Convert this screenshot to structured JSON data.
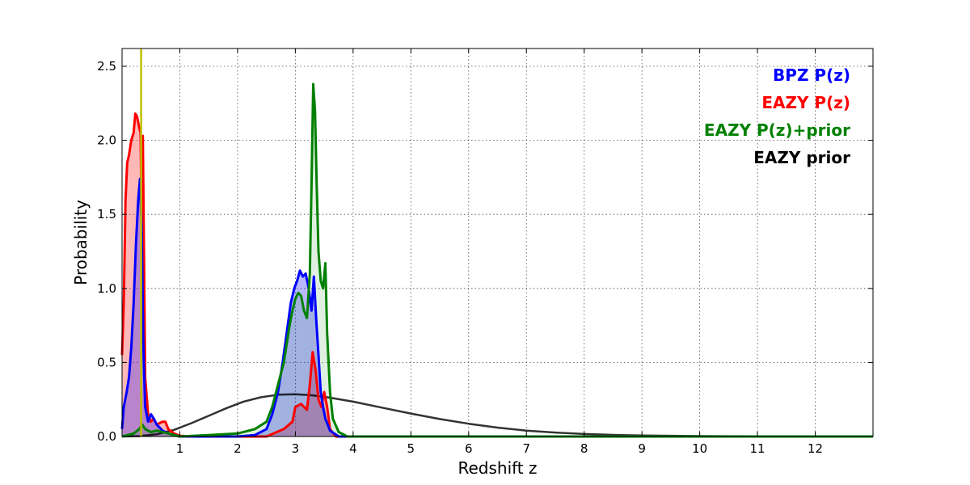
{
  "chart_data": {
    "type": "area",
    "xlabel": "Redshift z",
    "ylabel": "Probability",
    "xlim": [
      0,
      13
    ],
    "ylim": [
      0,
      2.62
    ],
    "x_ticks": [
      1,
      2,
      3,
      4,
      5,
      6,
      7,
      8,
      9,
      10,
      11,
      12
    ],
    "y_ticks": [
      0.0,
      0.5,
      1.0,
      1.5,
      2.0,
      2.5
    ],
    "y_tick_labels": [
      "0.0",
      "0.5",
      "1.0",
      "1.5",
      "2.0",
      "2.5"
    ],
    "grid": true,
    "legend_position": "top-right",
    "vertical_line": {
      "x": 0.33,
      "color": "#bfbf00"
    },
    "series": [
      {
        "name": "EAZY prior",
        "color": "#000000",
        "filled": false,
        "points": [
          [
            0.0,
            0.0
          ],
          [
            0.3,
            0.003
          ],
          [
            0.6,
            0.015
          ],
          [
            0.9,
            0.045
          ],
          [
            1.2,
            0.09
          ],
          [
            1.5,
            0.14
          ],
          [
            1.8,
            0.19
          ],
          [
            2.1,
            0.235
          ],
          [
            2.4,
            0.265
          ],
          [
            2.7,
            0.282
          ],
          [
            3.0,
            0.285
          ],
          [
            3.3,
            0.278
          ],
          [
            3.6,
            0.262
          ],
          [
            4.0,
            0.235
          ],
          [
            4.5,
            0.195
          ],
          [
            5.0,
            0.155
          ],
          [
            5.5,
            0.118
          ],
          [
            6.0,
            0.086
          ],
          [
            6.5,
            0.06
          ],
          [
            7.0,
            0.04
          ],
          [
            7.5,
            0.027
          ],
          [
            8.0,
            0.017
          ],
          [
            8.5,
            0.011
          ],
          [
            9.0,
            0.007
          ],
          [
            10.0,
            0.003
          ],
          [
            11.0,
            0.001
          ],
          [
            12.0,
            0.0
          ],
          [
            13.0,
            0.0
          ]
        ]
      },
      {
        "name": "EAZY P(z)",
        "color": "#ff0000",
        "filled": true,
        "points": [
          [
            0.0,
            0.55
          ],
          [
            0.03,
            0.9
          ],
          [
            0.06,
            1.6
          ],
          [
            0.09,
            1.85
          ],
          [
            0.12,
            1.9
          ],
          [
            0.16,
            2.0
          ],
          [
            0.2,
            2.05
          ],
          [
            0.23,
            2.18
          ],
          [
            0.26,
            2.16
          ],
          [
            0.29,
            2.1
          ],
          [
            0.32,
            2.05
          ],
          [
            0.34,
            1.4
          ],
          [
            0.36,
            2.03
          ],
          [
            0.38,
            1.2
          ],
          [
            0.4,
            0.4
          ],
          [
            0.45,
            0.15
          ],
          [
            0.5,
            0.1
          ],
          [
            0.55,
            0.12
          ],
          [
            0.6,
            0.08
          ],
          [
            0.65,
            0.09
          ],
          [
            0.7,
            0.1
          ],
          [
            0.75,
            0.1
          ],
          [
            0.8,
            0.05
          ],
          [
            0.9,
            0.02
          ],
          [
            1.0,
            0.005
          ],
          [
            1.2,
            0.0
          ],
          [
            2.5,
            0.0
          ],
          [
            2.8,
            0.05
          ],
          [
            2.95,
            0.1
          ],
          [
            3.0,
            0.2
          ],
          [
            3.1,
            0.22
          ],
          [
            3.2,
            0.18
          ],
          [
            3.25,
            0.35
          ],
          [
            3.3,
            0.57
          ],
          [
            3.35,
            0.45
          ],
          [
            3.4,
            0.25
          ],
          [
            3.45,
            0.2
          ],
          [
            3.5,
            0.3
          ],
          [
            3.55,
            0.2
          ],
          [
            3.6,
            0.05
          ],
          [
            3.7,
            0.0
          ],
          [
            13.0,
            0.0
          ]
        ]
      },
      {
        "name": "BPZ P(z)",
        "color": "#0000ff",
        "filled": true,
        "points": [
          [
            0.0,
            0.05
          ],
          [
            0.03,
            0.2
          ],
          [
            0.08,
            0.3
          ],
          [
            0.12,
            0.4
          ],
          [
            0.16,
            0.6
          ],
          [
            0.2,
            0.9
          ],
          [
            0.24,
            1.3
          ],
          [
            0.28,
            1.6
          ],
          [
            0.31,
            1.74
          ],
          [
            0.34,
            1.4
          ],
          [
            0.37,
            0.6
          ],
          [
            0.4,
            0.2
          ],
          [
            0.45,
            0.1
          ],
          [
            0.5,
            0.15
          ],
          [
            0.55,
            0.12
          ],
          [
            0.6,
            0.08
          ],
          [
            0.7,
            0.04
          ],
          [
            0.8,
            0.02
          ],
          [
            1.0,
            0.0
          ],
          [
            2.0,
            0.0
          ],
          [
            2.3,
            0.01
          ],
          [
            2.5,
            0.05
          ],
          [
            2.6,
            0.15
          ],
          [
            2.7,
            0.3
          ],
          [
            2.78,
            0.5
          ],
          [
            2.85,
            0.7
          ],
          [
            2.92,
            0.9
          ],
          [
            2.98,
            1.0
          ],
          [
            3.03,
            1.05
          ],
          [
            3.08,
            1.12
          ],
          [
            3.13,
            1.08
          ],
          [
            3.18,
            1.1
          ],
          [
            3.23,
            1.0
          ],
          [
            3.28,
            0.85
          ],
          [
            3.32,
            1.08
          ],
          [
            3.36,
            0.8
          ],
          [
            3.4,
            0.55
          ],
          [
            3.44,
            0.3
          ],
          [
            3.48,
            0.2
          ],
          [
            3.52,
            0.12
          ],
          [
            3.6,
            0.04
          ],
          [
            3.75,
            0.0
          ],
          [
            13.0,
            0.0
          ]
        ]
      },
      {
        "name": "EAZY P(z)+prior",
        "color": "#008000",
        "filled": true,
        "points": [
          [
            0.0,
            0.0
          ],
          [
            0.2,
            0.02
          ],
          [
            0.3,
            0.05
          ],
          [
            0.35,
            0.08
          ],
          [
            0.4,
            0.05
          ],
          [
            0.5,
            0.03
          ],
          [
            0.6,
            0.04
          ],
          [
            0.8,
            0.02
          ],
          [
            1.0,
            0.0
          ],
          [
            1.5,
            0.01
          ],
          [
            2.0,
            0.02
          ],
          [
            2.3,
            0.05
          ],
          [
            2.5,
            0.1
          ],
          [
            2.6,
            0.2
          ],
          [
            2.7,
            0.35
          ],
          [
            2.8,
            0.5
          ],
          [
            2.9,
            0.75
          ],
          [
            2.95,
            0.85
          ],
          [
            3.0,
            0.93
          ],
          [
            3.05,
            0.97
          ],
          [
            3.1,
            0.95
          ],
          [
            3.15,
            0.85
          ],
          [
            3.2,
            0.8
          ],
          [
            3.25,
            1.1
          ],
          [
            3.28,
            1.7
          ],
          [
            3.31,
            2.38
          ],
          [
            3.34,
            2.2
          ],
          [
            3.37,
            1.7
          ],
          [
            3.4,
            1.25
          ],
          [
            3.44,
            1.05
          ],
          [
            3.48,
            1.0
          ],
          [
            3.52,
            1.17
          ],
          [
            3.55,
            0.7
          ],
          [
            3.6,
            0.3
          ],
          [
            3.65,
            0.12
          ],
          [
            3.75,
            0.03
          ],
          [
            3.9,
            0.0
          ],
          [
            13.0,
            0.0
          ]
        ]
      }
    ]
  },
  "legend": [
    {
      "label": "BPZ P(z)",
      "color": "#0000ff"
    },
    {
      "label": "EAZY P(z)",
      "color": "#ff0000"
    },
    {
      "label": "EAZY P(z)+prior",
      "color": "#008000"
    },
    {
      "label": "EAZY prior",
      "color": "#000000"
    }
  ]
}
